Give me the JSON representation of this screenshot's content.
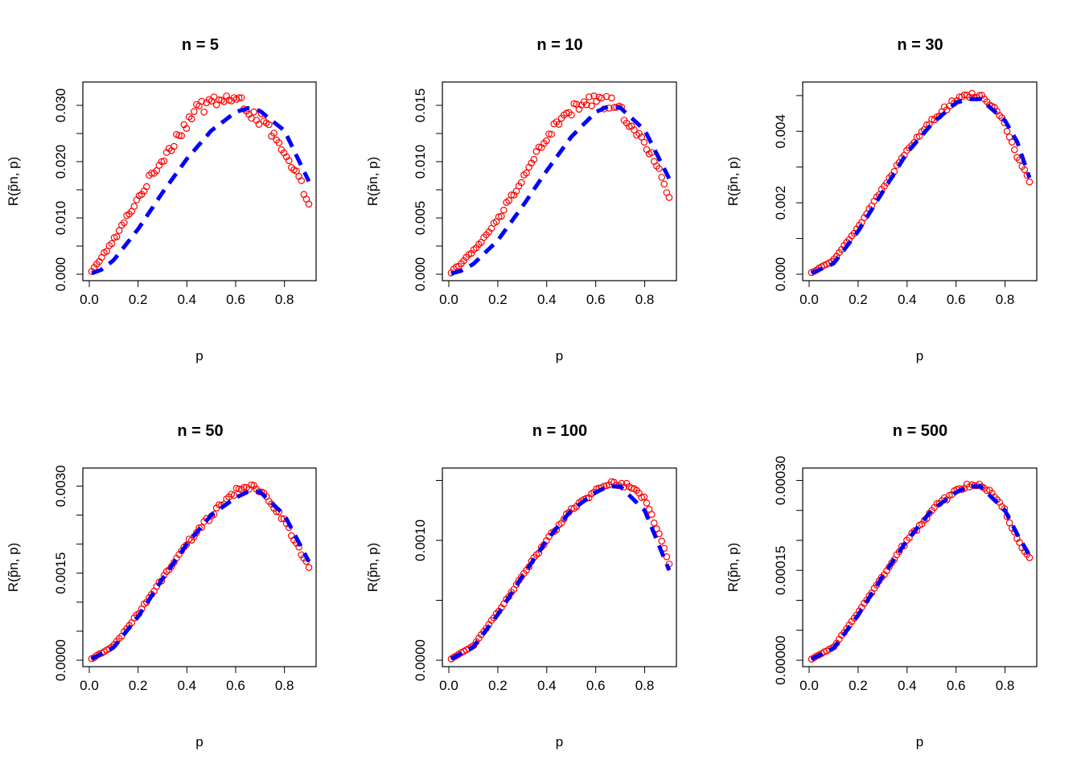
{
  "chart_data": [
    {
      "type": "scatter",
      "title": "n =  5",
      "xlabel": "p",
      "ylabel": "R(p̃n, p)",
      "xlim": [
        0,
        0.9
      ],
      "ylim": [
        0,
        0.033
      ],
      "xticks": [
        0.0,
        0.2,
        0.4,
        0.6,
        0.8
      ],
      "xtick_labels": [
        "0.0",
        "0.2",
        "0.4",
        "0.6",
        "0.8"
      ],
      "yticks": [
        0.0,
        0.005,
        0.01,
        0.015,
        0.02,
        0.025,
        0.03
      ],
      "ytick_labels": [
        "0.000",
        "",
        "0.010",
        "",
        "0.020",
        "",
        "0.030"
      ],
      "series": [
        {
          "style": "points",
          "color": "#ff0000",
          "noise": 0.045,
          "x": [
            0.0,
            0.1,
            0.2,
            0.3,
            0.4,
            0.45,
            0.5,
            0.55,
            0.6,
            0.65,
            0.7,
            0.75,
            0.8,
            0.85,
            0.9
          ],
          "y": [
            0.0,
            0.006,
            0.0135,
            0.0205,
            0.027,
            0.0295,
            0.0308,
            0.0312,
            0.0307,
            0.0295,
            0.0275,
            0.025,
            0.021,
            0.0175,
            0.013
          ]
        },
        {
          "style": "dashed",
          "color": "#0000ff",
          "x": [
            0.0,
            0.05,
            0.1,
            0.2,
            0.3,
            0.4,
            0.5,
            0.6,
            0.65,
            0.7,
            0.8,
            0.9
          ],
          "y": [
            0.0,
            0.0008,
            0.0025,
            0.008,
            0.0145,
            0.0205,
            0.0255,
            0.0288,
            0.0295,
            0.029,
            0.0255,
            0.0165
          ]
        }
      ]
    },
    {
      "type": "scatter",
      "title": "n =  10",
      "xlabel": "p",
      "ylabel": "R(p̃n, p)",
      "xlim": [
        0,
        0.9
      ],
      "ylim": [
        0,
        0.0165
      ],
      "xticks": [
        0.0,
        0.2,
        0.4,
        0.6,
        0.8
      ],
      "xtick_labels": [
        "0.0",
        "0.2",
        "0.4",
        "0.6",
        "0.8"
      ],
      "yticks": [
        0.0,
        0.0025,
        0.005,
        0.0075,
        0.01,
        0.0125,
        0.015
      ],
      "ytick_labels": [
        "0.000",
        "",
        "0.005",
        "",
        "0.010",
        "",
        "0.015"
      ],
      "series": [
        {
          "style": "points",
          "color": "#ff0000",
          "noise": 0.04,
          "x": [
            0.0,
            0.1,
            0.2,
            0.3,
            0.4,
            0.45,
            0.5,
            0.55,
            0.6,
            0.65,
            0.7,
            0.75,
            0.8,
            0.85,
            0.9
          ],
          "y": [
            0.0,
            0.002,
            0.0048,
            0.0085,
            0.0122,
            0.0135,
            0.0145,
            0.0152,
            0.0154,
            0.0152,
            0.0145,
            0.0133,
            0.0115,
            0.0095,
            0.007
          ]
        },
        {
          "style": "dashed",
          "color": "#0000ff",
          "x": [
            0.0,
            0.05,
            0.1,
            0.2,
            0.3,
            0.4,
            0.5,
            0.6,
            0.65,
            0.7,
            0.8,
            0.9
          ],
          "y": [
            0.0,
            0.0003,
            0.0009,
            0.003,
            0.006,
            0.0092,
            0.0122,
            0.0144,
            0.0149,
            0.0148,
            0.0128,
            0.0085
          ]
        }
      ]
    },
    {
      "type": "scatter",
      "title": "n =  30",
      "xlabel": "p",
      "ylabel": "R(p̃n, p)",
      "xlim": [
        0,
        0.9
      ],
      "ylim": [
        0,
        0.0052
      ],
      "xticks": [
        0.0,
        0.2,
        0.4,
        0.6,
        0.8
      ],
      "xtick_labels": [
        "0.0",
        "0.2",
        "0.4",
        "0.6",
        "0.8"
      ],
      "yticks": [
        0.0,
        0.001,
        0.002,
        0.003,
        0.004,
        0.005
      ],
      "ytick_labels": [
        "0.000",
        "",
        "0.002",
        "",
        "0.004",
        ""
      ],
      "series": [
        {
          "style": "points",
          "color": "#ff0000",
          "noise": 0.015,
          "x": [
            0.0,
            0.1,
            0.2,
            0.3,
            0.4,
            0.5,
            0.6,
            0.65,
            0.7,
            0.75,
            0.8,
            0.85,
            0.9
          ],
          "y": [
            0.0,
            0.0004,
            0.0013,
            0.0024,
            0.0035,
            0.0043,
            0.0049,
            0.005,
            0.005,
            0.0047,
            0.0042,
            0.0033,
            0.0026
          ]
        },
        {
          "style": "dashed",
          "color": "#0000ff",
          "x": [
            0.0,
            0.1,
            0.2,
            0.3,
            0.4,
            0.5,
            0.6,
            0.65,
            0.7,
            0.8,
            0.85,
            0.9
          ],
          "y": [
            0.0,
            0.0003,
            0.0012,
            0.0023,
            0.0034,
            0.0042,
            0.0048,
            0.0049,
            0.0049,
            0.0043,
            0.0037,
            0.0027
          ]
        }
      ]
    },
    {
      "type": "scatter",
      "title": "n =  50",
      "xlabel": "p",
      "ylabel": "R(p̃n, p)",
      "xlim": [
        0,
        0.9
      ],
      "ylim": [
        0,
        0.0032
      ],
      "xticks": [
        0.0,
        0.2,
        0.4,
        0.6,
        0.8
      ],
      "xtick_labels": [
        "0.0",
        "0.2",
        "0.4",
        "0.6",
        "0.8"
      ],
      "yticks": [
        0.0,
        0.0005,
        0.001,
        0.0015,
        0.002,
        0.0025,
        0.003
      ],
      "ytick_labels": [
        "0.0000",
        "",
        "",
        "0.0015",
        "",
        "",
        "0.0030"
      ],
      "series": [
        {
          "style": "points",
          "color": "#ff0000",
          "noise": 0.02,
          "x": [
            0.0,
            0.1,
            0.2,
            0.3,
            0.4,
            0.5,
            0.6,
            0.65,
            0.7,
            0.75,
            0.8,
            0.85,
            0.9
          ],
          "y": [
            0.0,
            0.00025,
            0.0008,
            0.0014,
            0.002,
            0.0025,
            0.0029,
            0.003,
            0.0029,
            0.0027,
            0.0024,
            0.002,
            0.0016
          ]
        },
        {
          "style": "dashed",
          "color": "#0000ff",
          "x": [
            0.0,
            0.1,
            0.2,
            0.3,
            0.4,
            0.5,
            0.6,
            0.65,
            0.7,
            0.8,
            0.85,
            0.9
          ],
          "y": [
            0.0,
            0.00022,
            0.00075,
            0.0014,
            0.002,
            0.0025,
            0.0028,
            0.0029,
            0.0029,
            0.0025,
            0.0021,
            0.0017
          ]
        }
      ]
    },
    {
      "type": "scatter",
      "title": "n =  100",
      "xlabel": "p",
      "ylabel": "R(p̃n, p)",
      "xlim": [
        0,
        0.9
      ],
      "ylim": [
        0,
        0.00155
      ],
      "xticks": [
        0.0,
        0.2,
        0.4,
        0.6,
        0.8
      ],
      "xtick_labels": [
        "0.0",
        "0.2",
        "0.4",
        "0.6",
        "0.8"
      ],
      "yticks": [
        0.0,
        0.0005,
        0.001,
        0.0015
      ],
      "ytick_labels": [
        "0.0000",
        "",
        "0.0010",
        ""
      ],
      "series": [
        {
          "style": "points",
          "color": "#ff0000",
          "noise": 0.015,
          "x": [
            0.0,
            0.1,
            0.2,
            0.3,
            0.4,
            0.5,
            0.6,
            0.65,
            0.7,
            0.75,
            0.8,
            0.85,
            0.9
          ],
          "y": [
            0.0,
            0.00012,
            0.0004,
            0.0007,
            0.001,
            0.00125,
            0.00142,
            0.00148,
            0.00147,
            0.00144,
            0.00135,
            0.0011,
            0.0008
          ]
        },
        {
          "style": "dashed",
          "color": "#0000ff",
          "x": [
            0.0,
            0.1,
            0.2,
            0.3,
            0.4,
            0.5,
            0.6,
            0.65,
            0.7,
            0.8,
            0.85,
            0.9
          ],
          "y": [
            0.0,
            0.00011,
            0.00038,
            0.0007,
            0.001,
            0.00125,
            0.0014,
            0.00145,
            0.00145,
            0.00125,
            0.001,
            0.00075
          ]
        }
      ]
    },
    {
      "type": "scatter",
      "title": "n =  500",
      "xlabel": "p",
      "ylabel": "R(p̃n, p)",
      "xlim": [
        0,
        0.9
      ],
      "ylim": [
        0,
        0.00031
      ],
      "xticks": [
        0.0,
        0.2,
        0.4,
        0.6,
        0.8
      ],
      "xtick_labels": [
        "0.0",
        "0.2",
        "0.4",
        "0.6",
        "0.8"
      ],
      "yticks": [
        0.0,
        5e-05,
        0.0001,
        0.00015,
        0.0002,
        0.00025,
        0.0003
      ],
      "ytick_labels": [
        "0.00000",
        "",
        "",
        "0.00015",
        "",
        "",
        "0.00030"
      ],
      "series": [
        {
          "style": "points",
          "color": "#ff0000",
          "noise": 0.015,
          "x": [
            0.0,
            0.1,
            0.2,
            0.3,
            0.4,
            0.5,
            0.6,
            0.65,
            0.7,
            0.75,
            0.8,
            0.85,
            0.9
          ],
          "y": [
            0.0,
            2.2e-05,
            8e-05,
            0.00014,
            0.0002,
            0.00025,
            0.000285,
            0.000292,
            0.00029,
            0.00028,
            0.00025,
            0.0002,
            0.00017
          ]
        },
        {
          "style": "dashed",
          "color": "#0000ff",
          "x": [
            0.0,
            0.1,
            0.2,
            0.3,
            0.4,
            0.5,
            0.6,
            0.65,
            0.7,
            0.8,
            0.85,
            0.9
          ],
          "y": [
            0.0,
            2e-05,
            7.5e-05,
            0.00014,
            0.0002,
            0.00025,
            0.00028,
            0.00029,
            0.00029,
            0.00025,
            0.00021,
            0.000175
          ]
        }
      ]
    }
  ]
}
